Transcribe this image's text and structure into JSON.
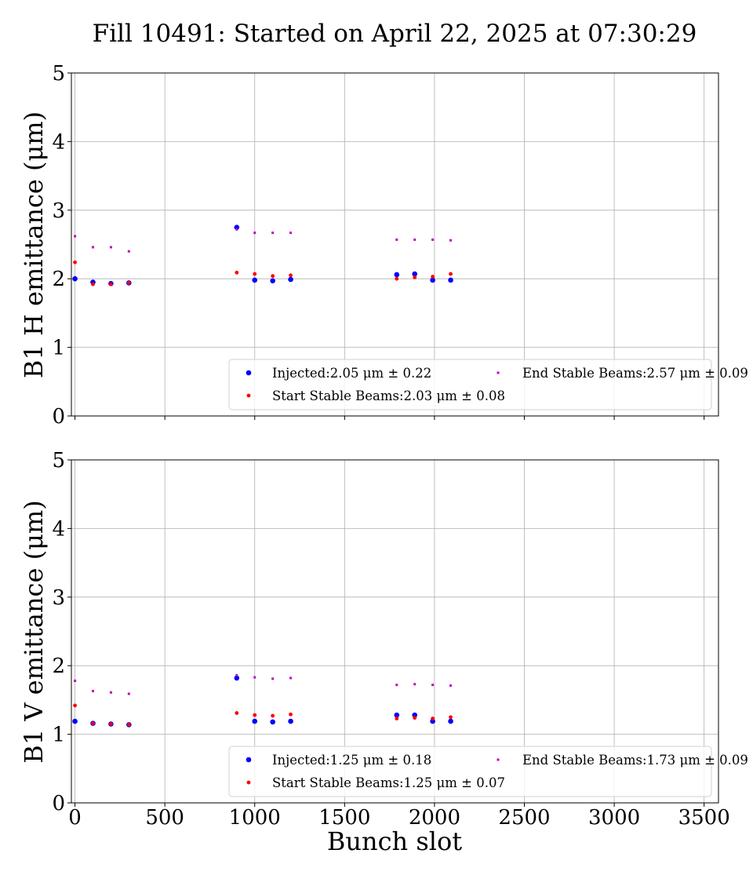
{
  "chart_data": {
    "title": "Fill 10491: Started on April 22, 2025 at 07:30:29",
    "xlabel": "Bunch slot",
    "xlim": [
      -20,
      3580
    ],
    "xticks": [
      0,
      500,
      1000,
      1500,
      2000,
      2500,
      3000,
      3500
    ],
    "grid": true,
    "series_colors": [
      "#0000ff",
      "#ff0000",
      "#bf00bf"
    ],
    "panels": [
      {
        "type": "scatter",
        "ylabel": "B1 H emittance (μm)",
        "ylim": [
          0,
          5
        ],
        "yticks": [
          0,
          1,
          2,
          3,
          4,
          5
        ],
        "legend_position": "lower-right",
        "series": [
          {
            "name": "Injected:2.05 μm ± 0.22",
            "x": [
              0,
              100,
              200,
              300,
              900,
              1000,
              1100,
              1200,
              1790,
              1890,
              1990,
              2090
            ],
            "y": [
              2.0,
              1.95,
              1.93,
              1.94,
              2.75,
              1.98,
              1.97,
              1.99,
              2.06,
              2.07,
              1.98,
              1.98
            ]
          },
          {
            "name": "Start Stable Beams:2.03 μm ± 0.08",
            "x": [
              0,
              100,
              200,
              300,
              900,
              1000,
              1100,
              1200,
              1790,
              1890,
              1990,
              2090
            ],
            "y": [
              2.24,
              1.92,
              1.92,
              1.94,
              2.09,
              2.07,
              2.04,
              2.05,
              2.0,
              2.02,
              2.03,
              2.07
            ]
          },
          {
            "name": "End Stable Beams:2.57 μm ± 0.09",
            "x": [
              0,
              100,
              200,
              300,
              900,
              1000,
              1100,
              1200,
              1790,
              1890,
              1990,
              2090
            ],
            "y": [
              2.62,
              2.46,
              2.46,
              2.4,
              2.72,
              2.67,
              2.67,
              2.67,
              2.57,
              2.57,
              2.57,
              2.56
            ]
          }
        ]
      },
      {
        "type": "scatter",
        "ylabel": "B1 V emittance (μm)",
        "ylim": [
          0,
          5
        ],
        "yticks": [
          0,
          1,
          2,
          3,
          4,
          5
        ],
        "legend_position": "lower-right",
        "series": [
          {
            "name": "Injected:1.25 μm ± 0.18",
            "x": [
              0,
              100,
              200,
              300,
              900,
              1000,
              1100,
              1200,
              1790,
              1890,
              1990,
              2090
            ],
            "y": [
              1.19,
              1.16,
              1.15,
              1.14,
              1.82,
              1.19,
              1.18,
              1.19,
              1.28,
              1.28,
              1.19,
              1.19
            ]
          },
          {
            "name": "Start Stable Beams:1.25 μm ± 0.07",
            "x": [
              0,
              100,
              200,
              300,
              900,
              1000,
              1100,
              1200,
              1790,
              1890,
              1990,
              2090
            ],
            "y": [
              1.42,
              1.16,
              1.15,
              1.14,
              1.31,
              1.28,
              1.27,
              1.29,
              1.23,
              1.24,
              1.23,
              1.25
            ]
          },
          {
            "name": "End Stable Beams:1.73 μm ± 0.09",
            "x": [
              0,
              100,
              200,
              300,
              900,
              1000,
              1100,
              1200,
              1790,
              1890,
              1990,
              2090
            ],
            "y": [
              1.78,
              1.63,
              1.61,
              1.59,
              1.86,
              1.83,
              1.81,
              1.82,
              1.72,
              1.73,
              1.72,
              1.71
            ]
          }
        ]
      }
    ]
  }
}
